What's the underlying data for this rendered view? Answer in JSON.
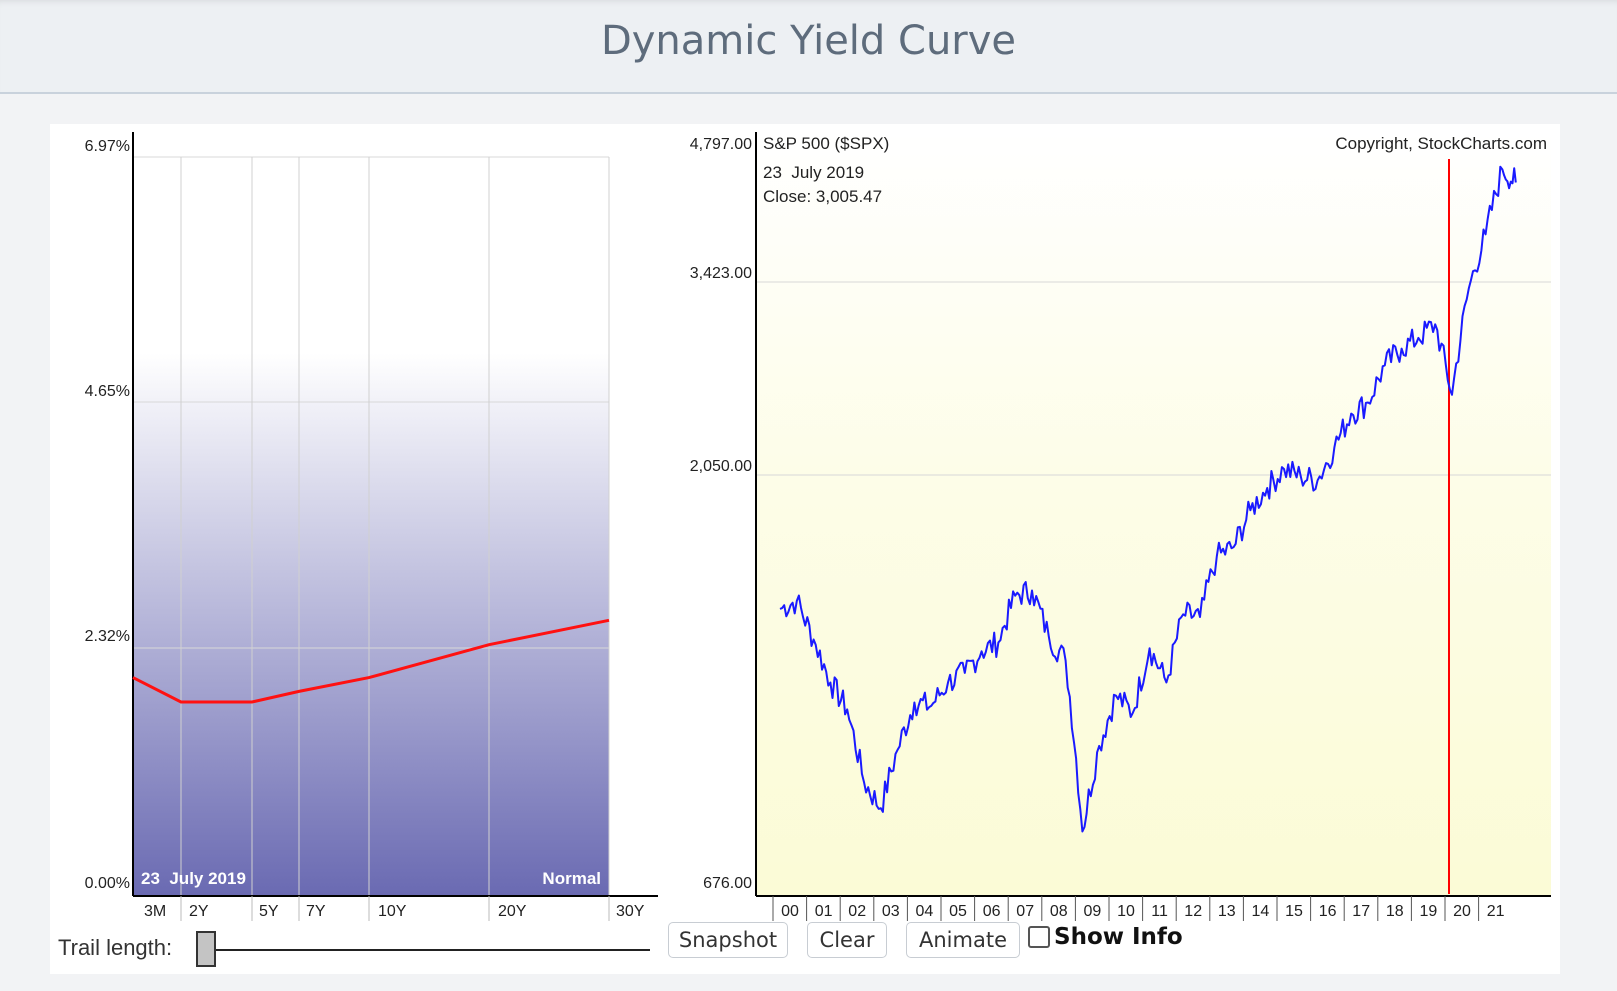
{
  "header": {
    "title": "Dynamic Yield Curve"
  },
  "yield_chart": {
    "y_ticks": [
      "6.97%",
      "4.65%",
      "2.32%",
      "0.00%"
    ],
    "x_ticks": [
      "3M",
      "2Y",
      "5Y",
      "7Y",
      "10Y",
      "20Y",
      "30Y"
    ],
    "date_label": "23  July 2019",
    "shape_label": "Normal"
  },
  "spx_chart": {
    "title": "S&P 500 ($SPX)",
    "copyright": "Copyright, StockCharts.com",
    "date": "23  July 2019",
    "close": "Close: 3,005.47",
    "y_ticks": [
      "4,797.00",
      "3,423.00",
      "2,050.00",
      "676.00"
    ],
    "x_ticks": [
      "00",
      "01",
      "02",
      "03",
      "04",
      "05",
      "06",
      "07",
      "08",
      "09",
      "10",
      "11",
      "12",
      "13",
      "14",
      "15",
      "16",
      "17",
      "18",
      "19",
      "20",
      "21"
    ]
  },
  "chart_data": [
    {
      "type": "line",
      "x": [
        "3M",
        "2Y",
        "5Y",
        "7Y",
        "10Y",
        "20Y",
        "30Y"
      ],
      "series": [
        {
          "values": [
            2.06,
            1.83,
            1.83,
            1.93,
            2.06,
            2.37,
            2.6
          ]
        }
      ],
      "ylim": [
        0,
        6.97
      ]
    },
    {
      "type": "line",
      "title": "S&P 500 ($SPX)",
      "x": [
        2000,
        2000.5,
        2001,
        2001.5,
        2002,
        2002.5,
        2003,
        2003.5,
        2004,
        2004.5,
        2005,
        2005.5,
        2006,
        2006.5,
        2007,
        2007.5,
        2008,
        2008.5,
        2009,
        2009.5,
        2010,
        2010.5,
        2011,
        2011.5,
        2012,
        2012.5,
        2013,
        2013.5,
        2014,
        2014.5,
        2015,
        2015.5,
        2016,
        2016.5,
        2017,
        2017.5,
        2018,
        2018.5,
        2019,
        2019.5,
        2020,
        2020.5,
        2021,
        2021.5,
        2021.9
      ],
      "series": [
        {
          "name": "S&P 500 ($SPX)",
          "values": [
            1430,
            1460,
            1320,
            1180,
            1100,
            910,
            850,
            990,
            1120,
            1110,
            1180,
            1210,
            1280,
            1310,
            1480,
            1500,
            1330,
            1250,
            800,
            1000,
            1140,
            1090,
            1290,
            1180,
            1410,
            1400,
            1640,
            1680,
            1850,
            1960,
            2060,
            2020,
            2000,
            2180,
            2380,
            2450,
            2700,
            2820,
            2900,
            3005,
            2500,
            3300,
            3800,
            4500,
            4350
          ]
        }
      ],
      "ylim": [
        676,
        4797
      ],
      "annotations": [
        "23 July 2019",
        "Close: 3,005.47"
      ]
    }
  ],
  "controls": {
    "trail_label": "Trail length:",
    "snapshot": "Snapshot",
    "clear": "Clear",
    "animate": "Animate",
    "show_info": "Show Info"
  },
  "colors": {
    "yield_line": "#ff1111",
    "spx_line": "#1a1aff",
    "marker": "#ff0000"
  }
}
